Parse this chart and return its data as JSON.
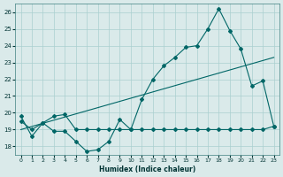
{
  "xlabel": "Humidex (Indice chaleur)",
  "bg_color": "#daeaea",
  "grid_color": "#aacfcf",
  "line_color": "#006666",
  "xlim": [
    -0.5,
    23.5
  ],
  "ylim": [
    17.5,
    26.5
  ],
  "yticks": [
    18,
    19,
    20,
    21,
    22,
    23,
    24,
    25,
    26
  ],
  "xticks": [
    0,
    1,
    2,
    3,
    4,
    5,
    6,
    7,
    8,
    9,
    10,
    11,
    12,
    13,
    14,
    15,
    16,
    17,
    18,
    19,
    20,
    21,
    22,
    23
  ],
  "series1_x": [
    0,
    1,
    2,
    3,
    4,
    5,
    6,
    7,
    8,
    9,
    10,
    11,
    12,
    13,
    14,
    15,
    16,
    17,
    18,
    19,
    20,
    21,
    22,
    23
  ],
  "series1_y": [
    19.8,
    18.6,
    19.4,
    18.9,
    18.9,
    18.3,
    17.7,
    17.8,
    18.3,
    19.6,
    19.0,
    20.8,
    22.0,
    22.8,
    23.3,
    23.9,
    24.0,
    25.0,
    26.2,
    24.9,
    23.8,
    21.6,
    21.9,
    19.2
  ],
  "series2_x": [
    0,
    23
  ],
  "series2_y": [
    19.0,
    23.3
  ],
  "series3_x": [
    0,
    1,
    2,
    3,
    4,
    5,
    6,
    7,
    8,
    9,
    10,
    11,
    12,
    13,
    14,
    15,
    16,
    17,
    18,
    19,
    20,
    21,
    22,
    23
  ],
  "series3_y": [
    19.5,
    19.0,
    19.4,
    19.8,
    19.9,
    19.0,
    19.0,
    19.0,
    19.0,
    19.0,
    19.0,
    19.0,
    19.0,
    19.0,
    19.0,
    19.0,
    19.0,
    19.0,
    19.0,
    19.0,
    19.0,
    19.0,
    19.0,
    19.2
  ]
}
